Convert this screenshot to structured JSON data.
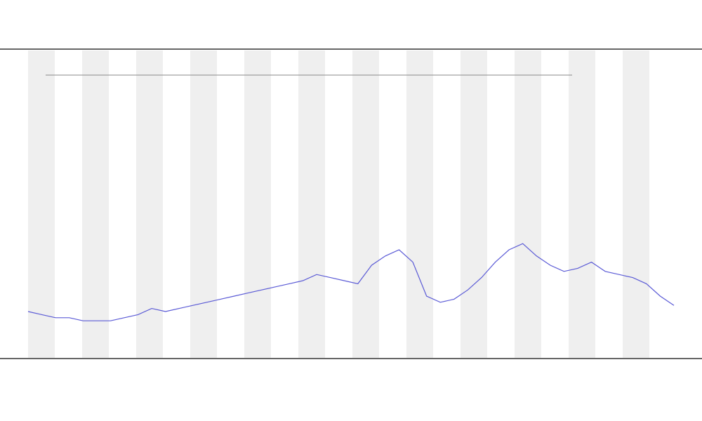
{
  "chart_data": {
    "type": "line",
    "series": [
      {
        "color": "#5b5bd6",
        "values": [
          15,
          14,
          13,
          13,
          12,
          12,
          12,
          13,
          14,
          16,
          15,
          16,
          17,
          18,
          19,
          20,
          21,
          22,
          23,
          24,
          25,
          27,
          26,
          25,
          24,
          30,
          33,
          35,
          31,
          20,
          18,
          19,
          22,
          26,
          31,
          35,
          37,
          33,
          30,
          28,
          29,
          31,
          28,
          27,
          26,
          24,
          20,
          17
        ]
      }
    ],
    "ylim": [
      0,
      100
    ]
  }
}
